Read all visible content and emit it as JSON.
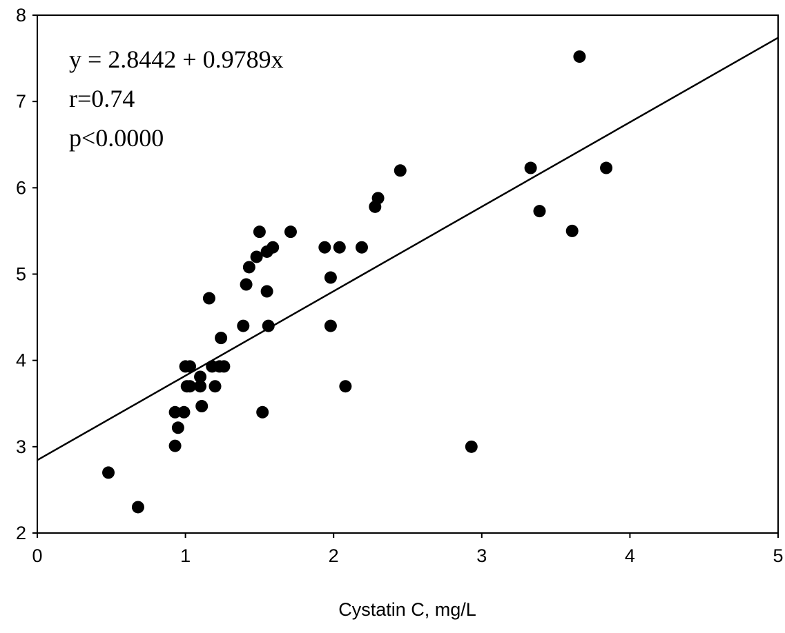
{
  "chart_data": {
    "type": "scatter",
    "title": "",
    "xlabel": "Cystatin C, mg/L",
    "ylabel": "",
    "xlim": [
      0,
      5
    ],
    "ylim": [
      2,
      8
    ],
    "xticks": [
      "0",
      "1",
      "2",
      "3",
      "4",
      "5"
    ],
    "yticks": [
      "2",
      "3",
      "4",
      "5",
      "6",
      "7",
      "8"
    ],
    "grid": false,
    "annotations": [
      "y = 2.8442 + 0.9789x",
      "r=0.74",
      "p<0.0000"
    ],
    "regression": {
      "intercept": 2.8442,
      "slope": 0.9789
    },
    "points": [
      [
        0.48,
        2.7
      ],
      [
        0.68,
        2.3
      ],
      [
        0.93,
        3.01
      ],
      [
        0.95,
        3.22
      ],
      [
        0.93,
        3.4
      ],
      [
        0.99,
        3.4
      ],
      [
        1.0,
        3.93
      ],
      [
        1.03,
        3.93
      ],
      [
        1.01,
        3.7
      ],
      [
        1.03,
        3.7
      ],
      [
        1.1,
        3.81
      ],
      [
        1.1,
        3.7
      ],
      [
        1.11,
        3.47
      ],
      [
        1.2,
        3.7
      ],
      [
        1.18,
        3.93
      ],
      [
        1.23,
        3.93
      ],
      [
        1.26,
        3.93
      ],
      [
        1.24,
        4.26
      ],
      [
        1.16,
        4.72
      ],
      [
        1.39,
        4.4
      ],
      [
        1.41,
        4.88
      ],
      [
        1.56,
        4.4
      ],
      [
        1.55,
        4.8
      ],
      [
        1.43,
        5.08
      ],
      [
        1.48,
        5.2
      ],
      [
        1.55,
        5.26
      ],
      [
        1.59,
        5.31
      ],
      [
        1.5,
        5.49
      ],
      [
        1.71,
        5.49
      ],
      [
        1.52,
        3.4
      ],
      [
        1.94,
        5.31
      ],
      [
        1.98,
        4.96
      ],
      [
        1.98,
        4.4
      ],
      [
        2.04,
        5.31
      ],
      [
        2.19,
        5.31
      ],
      [
        2.08,
        3.7
      ],
      [
        2.28,
        5.78
      ],
      [
        2.3,
        5.88
      ],
      [
        2.45,
        6.2
      ],
      [
        2.93,
        3.0
      ],
      [
        3.33,
        6.23
      ],
      [
        3.39,
        5.73
      ],
      [
        3.61,
        5.5
      ],
      [
        3.66,
        7.52
      ],
      [
        3.84,
        6.23
      ]
    ]
  }
}
